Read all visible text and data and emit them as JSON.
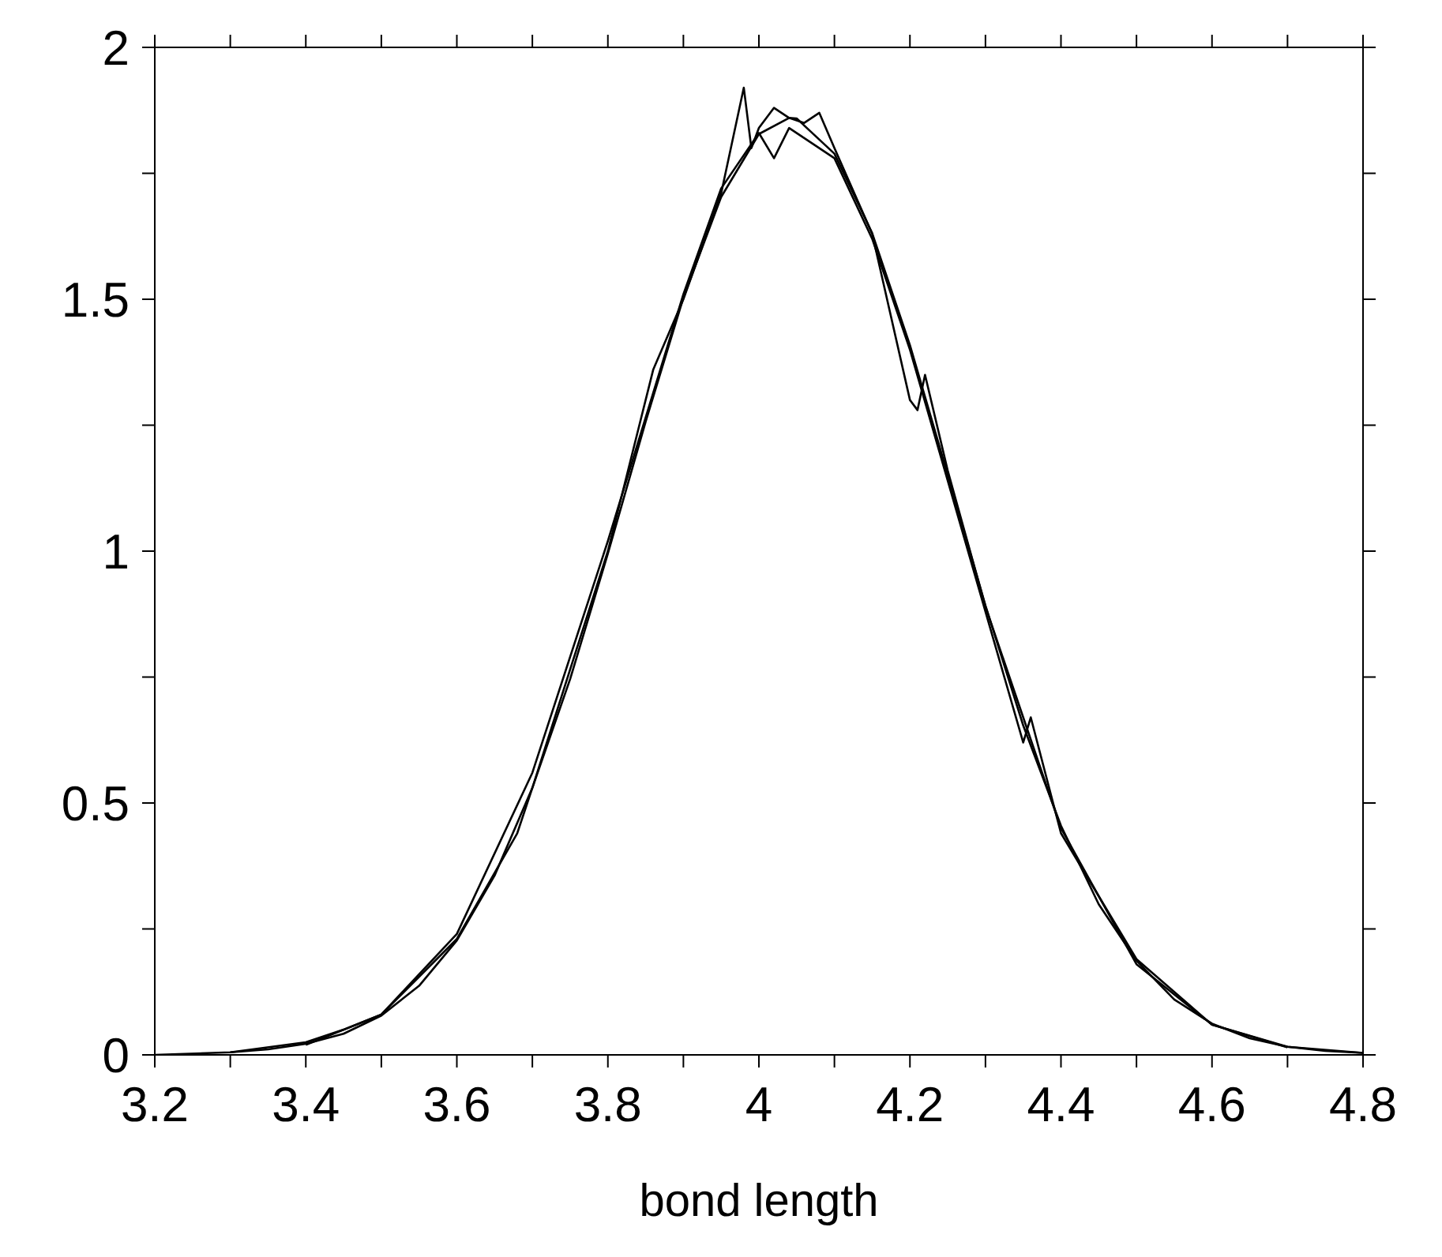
{
  "chart_data": {
    "type": "line",
    "xlabel": "bond length",
    "xlim": [
      3.2,
      4.8
    ],
    "xticks": [
      3.2,
      {
        "value": 3.3,
        "label": null
      },
      3.4,
      {
        "value": 3.5,
        "label": null
      },
      3.6,
      {
        "value": 3.7,
        "label": null
      },
      3.8,
      {
        "value": 3.9,
        "label": null
      },
      4,
      {
        "value": 4.1,
        "label": null
      },
      4.2,
      {
        "value": 4.3,
        "label": null
      },
      4.4,
      {
        "value": 4.5,
        "label": null
      },
      4.6,
      {
        "value": 4.7,
        "label": null
      },
      4.8
    ],
    "ylim": [
      0,
      2
    ],
    "yticks": [
      0,
      {
        "value": 0.25,
        "label": null
      },
      0.5,
      {
        "value": 0.75,
        "label": null
      },
      1,
      {
        "value": 1.25,
        "label": null
      },
      1.5,
      {
        "value": 1.75,
        "label": null
      },
      2
    ],
    "marker": "none",
    "line_style": "solid",
    "series": [
      {
        "color": "#000000",
        "x": [
          3.2,
          3.3,
          3.35,
          3.4,
          3.45,
          3.5,
          3.55,
          3.6,
          3.65,
          3.7,
          3.75,
          3.8,
          3.85,
          3.9,
          3.95,
          4.0,
          4.04,
          4.05,
          4.1,
          4.15,
          4.2,
          4.25,
          4.3,
          4.35,
          4.4,
          4.45,
          4.5,
          4.55,
          4.6,
          4.65,
          4.7,
          4.75,
          4.8
        ],
        "values": [
          0,
          0.005,
          0.011,
          0.022,
          0.042,
          0.078,
          0.137,
          0.227,
          0.356,
          0.53,
          0.746,
          0.995,
          1.257,
          1.503,
          1.703,
          1.828,
          1.86,
          1.859,
          1.789,
          1.631,
          1.409,
          1.152,
          0.892,
          0.654,
          0.455,
          0.299,
          0.187,
          0.11,
          0.062,
          0.033,
          0.016,
          0.008,
          0.004
        ]
      },
      {
        "color": "#000000",
        "x": [
          3.3,
          3.4,
          3.45,
          3.5,
          3.6,
          3.68,
          3.7,
          3.8,
          3.85,
          3.86,
          3.9,
          3.95,
          3.98,
          3.99,
          4.0,
          4.02,
          4.04,
          4.06,
          4.08,
          4.1,
          4.15,
          4.2,
          4.21,
          4.22,
          4.25,
          4.3,
          4.4,
          4.5,
          4.6,
          4.7,
          4.8
        ],
        "values": [
          0.005,
          0.025,
          0.05,
          0.08,
          0.23,
          0.44,
          0.53,
          1.0,
          1.3,
          1.36,
          1.5,
          1.71,
          1.92,
          1.8,
          1.84,
          1.88,
          1.86,
          1.85,
          1.87,
          1.8,
          1.63,
          1.3,
          1.28,
          1.35,
          1.16,
          0.89,
          0.45,
          0.18,
          0.06,
          0.016,
          0.004
        ]
      },
      {
        "color": "#000000",
        "x": [
          3.4,
          3.5,
          3.6,
          3.7,
          3.8,
          3.9,
          3.95,
          4.0,
          4.02,
          4.04,
          4.06,
          4.1,
          4.15,
          4.2,
          4.25,
          4.3,
          4.35,
          4.36,
          4.4,
          4.5,
          4.6,
          4.7
        ],
        "values": [
          0.02,
          0.08,
          0.24,
          0.56,
          1.02,
          1.51,
          1.72,
          1.83,
          1.78,
          1.84,
          1.82,
          1.78,
          1.62,
          1.4,
          1.14,
          0.88,
          0.62,
          0.67,
          0.44,
          0.19,
          0.06,
          0.015
        ]
      }
    ]
  }
}
